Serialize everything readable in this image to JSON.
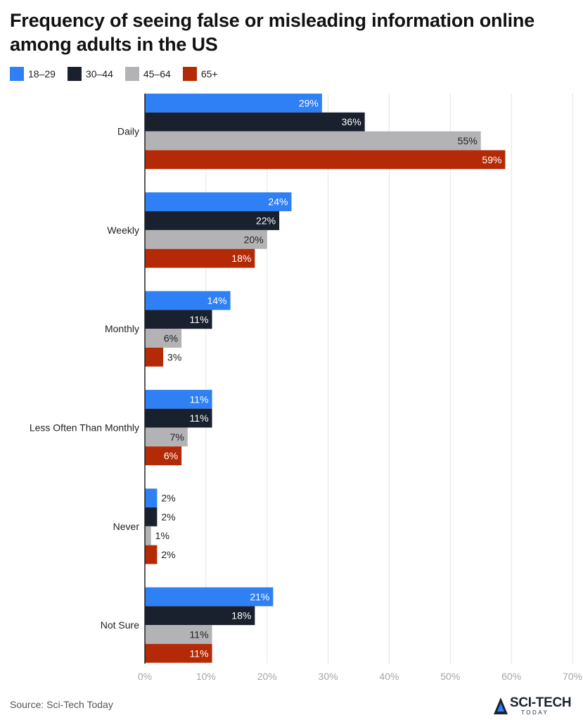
{
  "chart_data": {
    "type": "bar",
    "orientation": "horizontal",
    "title": "Frequency of seeing false or misleading information online among adults in the US",
    "categories": [
      "Daily",
      "Weekly",
      "Monthly",
      "Less Often Than Monthly",
      "Never",
      "Not Sure"
    ],
    "series": [
      {
        "name": "18–29",
        "color": "#2f7ff5",
        "values": [
          29,
          24,
          14,
          11,
          2,
          21
        ]
      },
      {
        "name": "30–44",
        "color": "#19202e",
        "values": [
          36,
          22,
          11,
          11,
          2,
          18
        ]
      },
      {
        "name": "45–64",
        "color": "#b3b3b6",
        "values": [
          55,
          20,
          6,
          7,
          1,
          11
        ]
      },
      {
        "name": "65+",
        "color": "#b52a06",
        "values": [
          59,
          18,
          3,
          6,
          2,
          11
        ]
      }
    ],
    "value_suffix": "%",
    "xlim": [
      0,
      70
    ],
    "xticks": [
      0,
      10,
      20,
      30,
      40,
      50,
      60,
      70
    ],
    "grid": true,
    "legend": "top-left"
  },
  "source": "Source: Sci-Tech Today",
  "logo": {
    "name": "SCI-TECH",
    "sub": "TODAY"
  }
}
